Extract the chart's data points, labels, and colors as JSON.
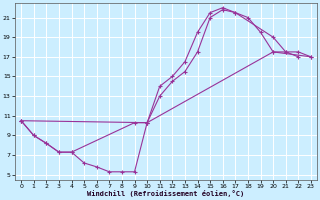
{
  "xlabel": "Windchill (Refroidissement éolien,°C)",
  "bg_color": "#cceeff",
  "grid_color": "#ffffff",
  "line_color": "#993399",
  "xlim": [
    -0.5,
    23.5
  ],
  "ylim": [
    4.5,
    22.5
  ],
  "xticks": [
    0,
    1,
    2,
    3,
    4,
    5,
    6,
    7,
    8,
    9,
    10,
    11,
    12,
    13,
    14,
    15,
    16,
    17,
    18,
    19,
    20,
    21,
    22,
    23
  ],
  "yticks": [
    5,
    7,
    9,
    11,
    13,
    15,
    17,
    19,
    21
  ],
  "line1": {
    "x": [
      0,
      1,
      2,
      3,
      4,
      5,
      6,
      7,
      8,
      9,
      10,
      11,
      12,
      13,
      14,
      15,
      16,
      17,
      18,
      19,
      20,
      21,
      22
    ],
    "y": [
      10.5,
      9.0,
      8.2,
      7.3,
      7.3,
      6.2,
      5.8,
      5.3,
      5.3,
      5.3,
      10.3,
      14.0,
      15.0,
      16.5,
      19.5,
      21.5,
      22.0,
      21.5,
      21.0,
      19.5,
      17.5,
      17.5,
      17.0
    ]
  },
  "line2": {
    "x": [
      0,
      1,
      2,
      3,
      4,
      9,
      10,
      11,
      12,
      13,
      14,
      15,
      16,
      17,
      20,
      21,
      22,
      23
    ],
    "y": [
      10.5,
      9.0,
      8.2,
      7.3,
      7.3,
      10.3,
      10.3,
      13.0,
      14.5,
      15.5,
      17.5,
      21.0,
      21.8,
      21.5,
      19.0,
      17.5,
      17.5,
      17.0
    ]
  },
  "line3": {
    "x": [
      0,
      10,
      20,
      23
    ],
    "y": [
      10.5,
      10.3,
      17.5,
      17.0
    ]
  }
}
